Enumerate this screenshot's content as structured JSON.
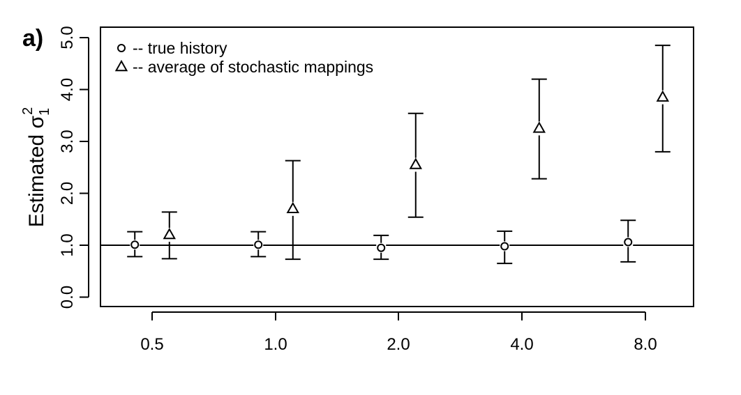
{
  "panel_label": "a)",
  "chart_data": {
    "type": "scatter",
    "ylabel_main": "Estimated σ",
    "ylabel_sub": "1",
    "ylabel_sup": "2",
    "ylim": [
      0,
      5
    ],
    "yticks": [
      "0.0",
      "1.0",
      "2.0",
      "3.0",
      "4.0",
      "5.0"
    ],
    "ytick_values": [
      0,
      1,
      2,
      3,
      4,
      5
    ],
    "categories": [
      "0.5",
      "1.0",
      "2.0",
      "4.0",
      "8.0"
    ],
    "reference_line": 1.0,
    "grid": false,
    "legend_position": "top-left",
    "series": [
      {
        "name": "true history",
        "legend_label": "-- true history",
        "marker": "circle",
        "offset": -0.14,
        "values": [
          1.01,
          1.01,
          0.95,
          0.98,
          1.06
        ],
        "lower": [
          0.78,
          0.78,
          0.73,
          0.65,
          0.68
        ],
        "upper": [
          1.26,
          1.26,
          1.19,
          1.27,
          1.48
        ]
      },
      {
        "name": "average of stochastic mappings",
        "legend_label": "-- average of stochastic mappings",
        "marker": "triangle",
        "offset": 0.14,
        "values": [
          1.2,
          1.7,
          2.55,
          3.25,
          3.85
        ],
        "lower": [
          0.74,
          0.73,
          1.54,
          2.28,
          2.8
        ],
        "upper": [
          1.64,
          2.63,
          3.54,
          4.2,
          4.85
        ]
      }
    ]
  }
}
